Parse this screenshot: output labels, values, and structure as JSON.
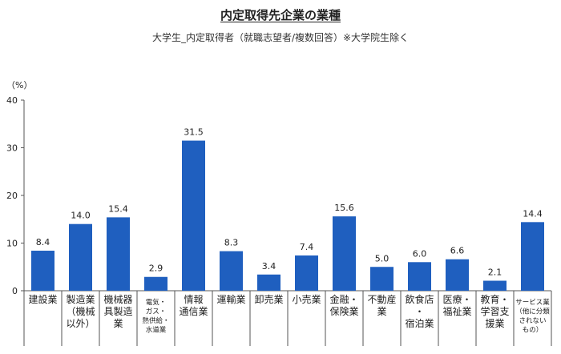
{
  "chart_data": {
    "type": "bar",
    "title": "内定取得先企業の業種",
    "subtitle": "大学生_内定取得者（就職志望者/複数回答）※大学院生除く",
    "ylabel": "（%）",
    "ylim": [
      0,
      40
    ],
    "yticks": [
      0,
      10,
      20,
      30,
      40
    ],
    "grid": false,
    "categories": [
      [
        "建設業"
      ],
      [
        "製造業",
        "（機械",
        "以外）"
      ],
      [
        "機械器",
        "具製造",
        "業"
      ],
      [
        "電気・",
        "ガス・",
        "熱供給・",
        "水道業"
      ],
      [
        "情報",
        "通信業"
      ],
      [
        "運輸業"
      ],
      [
        "卸売業"
      ],
      [
        "小売業"
      ],
      [
        "金融・",
        "保険業"
      ],
      [
        "不動産",
        "業"
      ],
      [
        "飲食店",
        "・",
        "宿泊業"
      ],
      [
        "医療・",
        "福祉業"
      ],
      [
        "教育・",
        "学習支",
        "援業"
      ],
      [
        "サービス業",
        "（他に分類",
        "されない",
        "もの）"
      ]
    ],
    "values": [
      8.4,
      14.0,
      15.4,
      2.9,
      31.5,
      8.3,
      3.4,
      7.4,
      15.6,
      5.0,
      6.0,
      6.6,
      2.1,
      14.4
    ],
    "value_labels": [
      "8.4",
      "14.0",
      "15.4",
      "2.9",
      "31.5",
      "8.3",
      "3.4",
      "7.4",
      "15.6",
      "5.0",
      "6.0",
      "6.6",
      "2.1",
      "14.4"
    ],
    "bar_color": "#1f5fbf"
  }
}
